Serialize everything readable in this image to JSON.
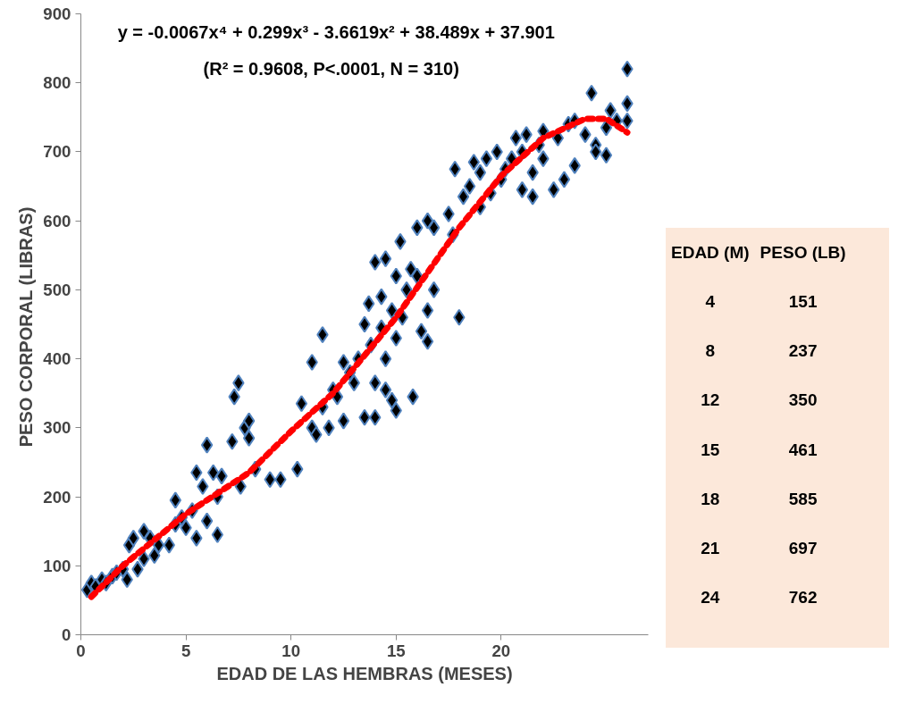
{
  "chart_data": {
    "type": "scatter",
    "xlabel": "EDAD DE LAS HEMBRAS (MESES)",
    "ylabel": "PESO CORPORAL  (LIBRAS)",
    "xlim": [
      0,
      27
    ],
    "ylim": [
      0,
      900
    ],
    "xticks": [
      0,
      5,
      10,
      15,
      20
    ],
    "yticks": [
      0,
      100,
      200,
      300,
      400,
      500,
      600,
      700,
      800,
      900
    ],
    "grid": false,
    "annotations": [
      "y = -0.0067x⁴ + 0.299x³ - 3.6619x² + 38.489x + 37.901",
      "(R² = 0.9608,   P<.0001, N = 310)",
      "EDAD (M)",
      "PESO (LB)",
      "4",
      "151",
      "8",
      "237",
      "12",
      "350",
      "15",
      "461",
      "18",
      "585",
      "21",
      "697",
      "24",
      "762"
    ],
    "series": [
      {
        "marker": "diamond",
        "color": "#000000",
        "x": [
          0.3,
          0.5,
          0.7,
          1,
          1.2,
          1.5,
          1.7,
          2,
          2.2,
          2.3,
          2.5,
          2.7,
          3,
          3,
          3.3,
          3.5,
          3.7,
          4.2,
          4.5,
          4.5,
          4.8,
          5,
          5.3,
          5.5,
          5.5,
          5.8,
          6,
          6,
          6.3,
          6.5,
          6.5,
          6.7,
          7.2,
          7.3,
          7.5,
          7.6,
          7.8,
          8,
          8,
          8.3,
          9,
          9.5,
          10.3,
          10.5,
          11,
          11,
          11.2,
          11.5,
          11.5,
          11.8,
          12,
          12.2,
          12.5,
          12.5,
          12.8,
          13,
          13.2,
          13.5,
          13.5,
          13.7,
          13.8,
          14,
          14,
          14,
          14.3,
          14.3,
          14.5,
          14.5,
          14.5,
          14.8,
          14.8,
          15,
          15,
          15,
          15.2,
          15.3,
          15.5,
          15.7,
          15.8,
          16,
          16,
          16.2,
          16.5,
          16.5,
          16.5,
          16.8,
          16.8,
          17.5,
          17.7,
          17.8,
          18,
          18.2,
          18.5,
          18.7,
          19,
          19,
          19.3,
          19.5,
          19.8,
          20,
          20.2,
          20.5,
          20.7,
          21,
          21,
          21.2,
          21.5,
          21.5,
          21.8,
          22,
          22,
          22.5,
          22.7,
          23,
          23.2,
          23.5,
          23.5,
          24,
          24.3,
          24.5,
          24.5,
          25,
          25,
          25.2,
          25.5,
          26,
          26,
          26
        ],
        "values": [
          65,
          75,
          70,
          80,
          75,
          85,
          90,
          95,
          80,
          130,
          140,
          95,
          110,
          150,
          140,
          115,
          130,
          130,
          195,
          160,
          170,
          155,
          180,
          235,
          140,
          215,
          275,
          165,
          235,
          145,
          200,
          230,
          280,
          345,
          365,
          215,
          300,
          310,
          285,
          240,
          225,
          225,
          240,
          335,
          395,
          300,
          290,
          435,
          330,
          300,
          355,
          345,
          395,
          310,
          380,
          365,
          400,
          450,
          315,
          480,
          420,
          540,
          365,
          315,
          490,
          445,
          545,
          400,
          355,
          470,
          340,
          520,
          430,
          325,
          570,
          460,
          500,
          530,
          345,
          590,
          520,
          440,
          600,
          470,
          425,
          590,
          500,
          610,
          580,
          675,
          460,
          635,
          650,
          685,
          620,
          670,
          690,
          640,
          700,
          660,
          675,
          690,
          720,
          700,
          645,
          725,
          670,
          635,
          710,
          730,
          690,
          645,
          720,
          660,
          740,
          680,
          745,
          725,
          785,
          710,
          700,
          735,
          695,
          760,
          745,
          820,
          770,
          745
        ]
      },
      {
        "type": "line",
        "color": "#ff0000",
        "line_style": "dashed",
        "x": [
          0.5,
          2,
          5,
          8,
          10,
          12,
          15,
          18,
          20,
          22,
          24,
          25,
          26
        ],
        "values": [
          55,
          100,
          175,
          235,
          295,
          350,
          460,
          590,
          665,
          720,
          748,
          748,
          728
        ]
      }
    ]
  }
}
